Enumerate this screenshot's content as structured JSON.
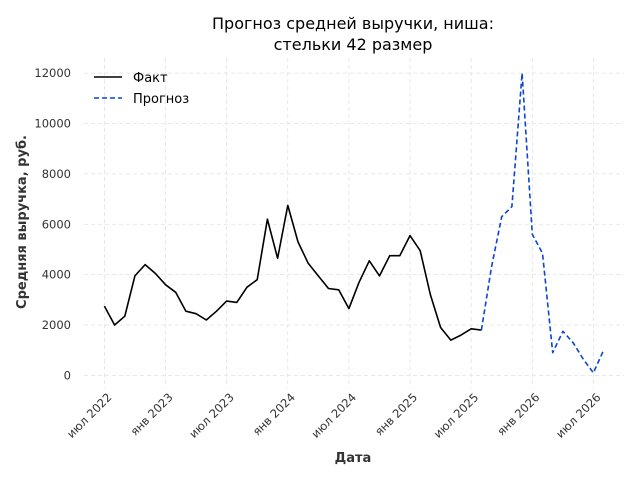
{
  "chart_data": {
    "type": "line",
    "title_lines": [
      "Прогноз средней выручки, ниша:",
      "стельки 42 размер"
    ],
    "xlabel": "Дата",
    "ylabel": "Средняя выручка, руб.",
    "ylim": [
      -500,
      12600
    ],
    "y_ticks": [
      0,
      2000,
      4000,
      6000,
      8000,
      10000,
      12000
    ],
    "y_tick_labels": [
      "0",
      "2000",
      "4000",
      "6000",
      "8000",
      "10000",
      "12000"
    ],
    "x_ticks": [
      "2022-07",
      "2023-01",
      "2023-07",
      "2024-01",
      "2024-07",
      "2025-01",
      "2025-07",
      "2026-01",
      "2026-07"
    ],
    "x_tick_labels": [
      "июл 2022",
      "янв 2023",
      "июл 2023",
      "янв 2024",
      "июл 2024",
      "янв 2025",
      "июл 2025",
      "янв 2026",
      "июл 2026"
    ],
    "x_range": [
      "2022-05",
      "2026-10"
    ],
    "grid": true,
    "legend_position": "top-left",
    "series": [
      {
        "name": "Факт",
        "color": "#000000",
        "style": "solid",
        "x": [
          "2022-07",
          "2022-08",
          "2022-09",
          "2022-10",
          "2022-11",
          "2022-12",
          "2023-01",
          "2023-02",
          "2023-03",
          "2023-04",
          "2023-05",
          "2023-06",
          "2023-07",
          "2023-08",
          "2023-09",
          "2023-10",
          "2023-11",
          "2023-12",
          "2024-01",
          "2024-02",
          "2024-03",
          "2024-04",
          "2024-05",
          "2024-06",
          "2024-07",
          "2024-08",
          "2024-09",
          "2024-10",
          "2024-11",
          "2024-12",
          "2025-01",
          "2025-02",
          "2025-03",
          "2025-04",
          "2025-05",
          "2025-06",
          "2025-07",
          "2025-08"
        ],
        "values": [
          2750,
          2000,
          2350,
          3950,
          4400,
          4050,
          3600,
          3300,
          2550,
          2450,
          2200,
          2550,
          2950,
          2900,
          3500,
          3800,
          6200,
          4650,
          6750,
          5300,
          4450,
          3950,
          3450,
          3400,
          2650,
          3700,
          4550,
          3950,
          4750,
          4750,
          5550,
          4950,
          3200,
          1900,
          1400,
          1600,
          1850,
          1800
        ]
      },
      {
        "name": "Прогноз",
        "color": "#0a45d6",
        "style": "dashed",
        "x": [
          "2025-08",
          "2025-09",
          "2025-10",
          "2025-11",
          "2025-12",
          "2026-01",
          "2026-02",
          "2026-03",
          "2026-04",
          "2026-05",
          "2026-06",
          "2026-07",
          "2026-08"
        ],
        "values": [
          1800,
          4300,
          6300,
          6700,
          12000,
          5600,
          4850,
          900,
          1750,
          1300,
          650,
          100,
          1000
        ]
      }
    ]
  }
}
